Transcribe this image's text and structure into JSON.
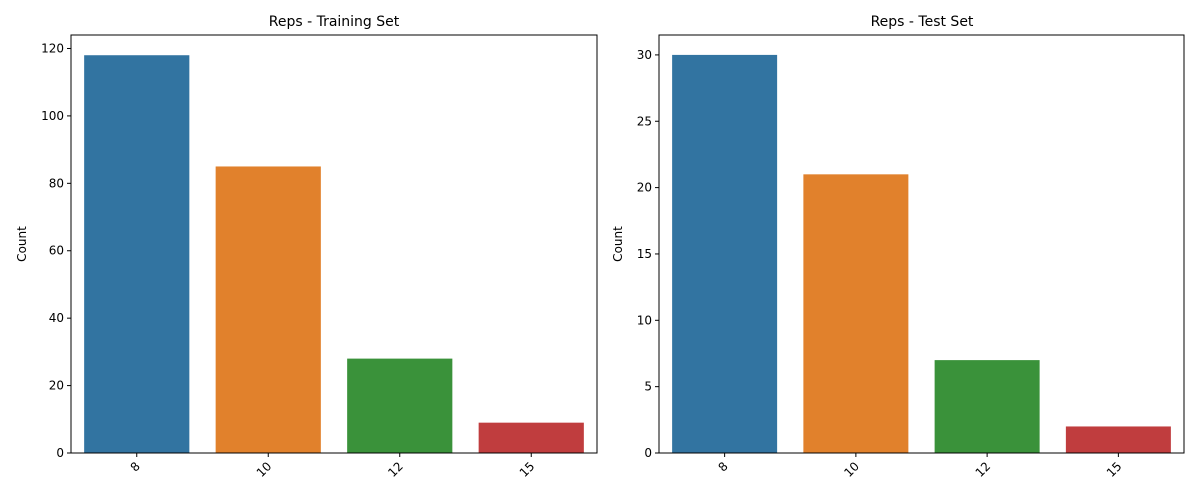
{
  "chart_data": [
    {
      "type": "bar",
      "title": "Reps - Training Set",
      "xlabel": "",
      "ylabel": "Count",
      "categories": [
        "8",
        "10",
        "12",
        "15"
      ],
      "values": [
        118,
        85,
        28,
        9
      ],
      "ylim": [
        0,
        124
      ],
      "yticks": [
        0,
        20,
        40,
        60,
        80,
        100,
        120
      ],
      "colors": [
        "#3274a1",
        "#e1812c",
        "#3a923a",
        "#c03d3e"
      ],
      "grid": false
    },
    {
      "type": "bar",
      "title": "Reps - Test Set",
      "xlabel": "",
      "ylabel": "Count",
      "categories": [
        "8",
        "10",
        "12",
        "15"
      ],
      "values": [
        30,
        21,
        7,
        2
      ],
      "ylim": [
        0,
        31.5
      ],
      "yticks": [
        0,
        5,
        10,
        15,
        20,
        25,
        30
      ],
      "colors": [
        "#3274a1",
        "#e1812c",
        "#3a923a",
        "#c03d3e"
      ],
      "grid": false
    }
  ]
}
